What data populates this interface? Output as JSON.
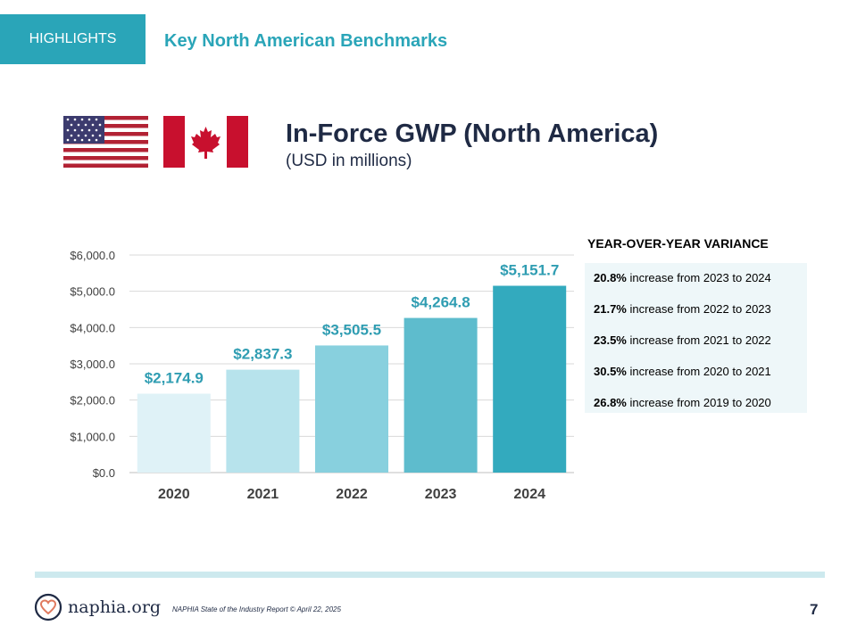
{
  "header": {
    "tag": "HIGHLIGHTS",
    "section_title": "Key North American Benchmarks"
  },
  "flags": [
    "us-flag-icon",
    "canada-flag-icon"
  ],
  "colors": {
    "accent": "#2aa5b8",
    "title": "#1f2a44",
    "bars": [
      "#dff2f7",
      "#b7e3ec",
      "#88d0de",
      "#5ebccd",
      "#33aabe"
    ],
    "label": "#2f9db2"
  },
  "chart_data": {
    "type": "bar",
    "title": "In-Force GWP (North America)",
    "subtitle": "(USD in millions)",
    "categories": [
      "2020",
      "2021",
      "2022",
      "2023",
      "2024"
    ],
    "values": [
      2174.9,
      2837.3,
      3505.5,
      4264.8,
      5151.7
    ],
    "value_labels": [
      "$2,174.9",
      "$2,837.3",
      "$3,505.5",
      "$4,264.8",
      "$5,151.7"
    ],
    "ylim": [
      0,
      6000
    ],
    "yticks": [
      0,
      1000,
      2000,
      3000,
      4000,
      5000,
      6000
    ],
    "ytick_labels": [
      "$0.0",
      "$1,000.0",
      "$2,000.0",
      "$3,000.0",
      "$4,000.0",
      "$5,000.0",
      "$6,000.0"
    ],
    "grid": true,
    "xlabel": "",
    "ylabel": ""
  },
  "variance": {
    "heading": "YEAR-OVER-YEAR VARIANCE",
    "rows": [
      {
        "pct": "20.8%",
        "text": " increase from 2023 to 2024"
      },
      {
        "pct": "21.7%",
        "text": " increase from 2022 to 2023"
      },
      {
        "pct": "23.5%",
        "text": " increase from 2021 to 2022"
      },
      {
        "pct": "30.5%",
        "text": " increase from 2020 to 2021"
      },
      {
        "pct": "26.8%",
        "text": " increase from 2019 to 2020"
      }
    ]
  },
  "footer": {
    "logo_text": "naphia.org",
    "note": "NAPHIA State of the Industry Report © April 22, 2025",
    "page": "7"
  }
}
